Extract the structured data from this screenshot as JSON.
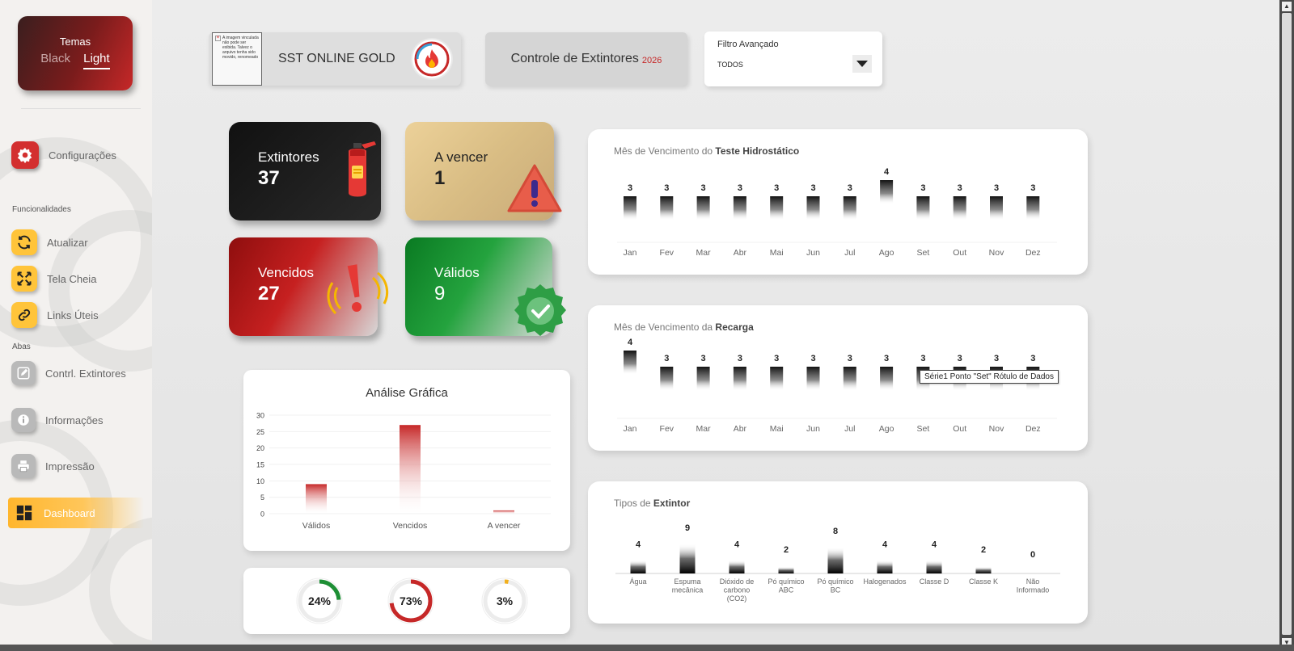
{
  "theme": {
    "title": "Temas",
    "black": "Black",
    "light": "Light"
  },
  "sidebar": {
    "settings": "Configurações",
    "section_func": "Funcionalidades",
    "refresh": "Atualizar",
    "fullscreen": "Tela Cheia",
    "links": "Links Úteis",
    "section_tabs": "Abas",
    "tab_control": "Contrl. Extintores",
    "tab_info": "Informações",
    "tab_print": "Impressão",
    "tab_dashboard": "Dashboard"
  },
  "header": {
    "broken_image_text": "A imagem vinculada não pode ser exibida. Talvez o arquivo tenha sido movido, renomeado",
    "brand": "SST ONLINE GOLD",
    "page_title": "Controle de Extintores",
    "year": "2026",
    "filter_label": "Filtro Avançado",
    "filter_value": "TODOS"
  },
  "kpis": {
    "extintores": {
      "label": "Extintores",
      "value": "37"
    },
    "a_vencer": {
      "label": "A vencer",
      "value": "1"
    },
    "vencidos": {
      "label": "Vencidos",
      "value": "27"
    },
    "validos": {
      "label": "Válidos",
      "value": "9"
    }
  },
  "tooltip": "Série1 Ponto \"Set\" Rótulo de Dados",
  "colors": {
    "accent_red": "#c62828",
    "accent_yellow": "#ffb62d",
    "green": "#1e8f35",
    "gold": "#f2b01e"
  },
  "chart_data": [
    {
      "type": "bar",
      "title_prefix": "Mês de Vencimento do ",
      "title_bold": "Teste Hidrostático",
      "categories": [
        "Jan",
        "Fev",
        "Mar",
        "Abr",
        "Mai",
        "Jun",
        "Jul",
        "Ago",
        "Set",
        "Out",
        "Nov",
        "Dez"
      ],
      "values": [
        3,
        3,
        3,
        3,
        3,
        3,
        3,
        4,
        3,
        3,
        3,
        3
      ]
    },
    {
      "type": "bar",
      "title_prefix": "Mês de Vencimento da ",
      "title_bold": "Recarga",
      "categories": [
        "Jan",
        "Fev",
        "Mar",
        "Abr",
        "Mai",
        "Jun",
        "Jul",
        "Ago",
        "Set",
        "Out",
        "Nov",
        "Dez"
      ],
      "values": [
        4,
        3,
        3,
        3,
        3,
        3,
        3,
        3,
        3,
        3,
        3,
        3
      ]
    },
    {
      "type": "bar",
      "title_prefix": "Tipos de ",
      "title_bold": "Extintor",
      "categories": [
        [
          "Água"
        ],
        [
          "Espuma",
          "mecânica"
        ],
        [
          "Dióxido de",
          "carbono",
          "(CO2)"
        ],
        [
          "Pó químico",
          "ABC"
        ],
        [
          "Pó químico",
          "BC"
        ],
        [
          "Halogenados"
        ],
        [
          "Classe D"
        ],
        [
          "Classe K"
        ],
        [
          "Não",
          "Informado"
        ]
      ],
      "values": [
        4,
        9,
        4,
        2,
        8,
        4,
        4,
        2,
        0
      ]
    },
    {
      "type": "bar",
      "title": "Análise Gráfica",
      "categories": [
        "Válidos",
        "Vencidos",
        "A vencer"
      ],
      "values": [
        9,
        27,
        1
      ],
      "ylim": [
        0,
        30
      ],
      "yticks": [
        0,
        5,
        10,
        15,
        20,
        25,
        30
      ]
    },
    {
      "type": "pie",
      "slices": [
        {
          "label": "24%",
          "value": 24,
          "color": "#1e8f35"
        },
        {
          "label": "73%",
          "value": 73,
          "color": "#c62828"
        },
        {
          "label": "3%",
          "value": 3,
          "color": "#f2b01e"
        }
      ]
    }
  ]
}
